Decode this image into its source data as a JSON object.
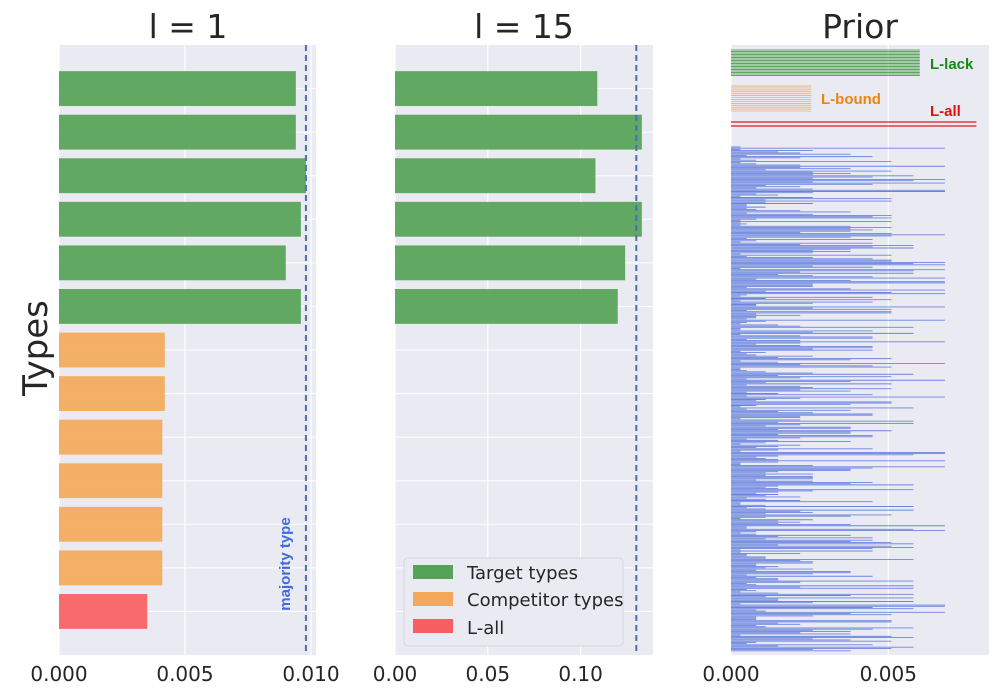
{
  "chart_data": [
    {
      "type": "bar",
      "orientation": "horizontal",
      "title": "l = 1",
      "ylabel": "Types",
      "xlim": [
        0,
        0.0102
      ],
      "xticks": [
        "0.000",
        "0.005",
        "0.010"
      ],
      "xtick_values": [
        0,
        0.005,
        0.01
      ],
      "bars": [
        {
          "group": "target",
          "value": 0.0094
        },
        {
          "group": "target",
          "value": 0.0094
        },
        {
          "group": "target",
          "value": 0.0098
        },
        {
          "group": "target",
          "value": 0.0096
        },
        {
          "group": "target",
          "value": 0.009
        },
        {
          "group": "target",
          "value": 0.0096
        },
        {
          "group": "competitor",
          "value": 0.0042
        },
        {
          "group": "competitor",
          "value": 0.0042
        },
        {
          "group": "competitor",
          "value": 0.0041
        },
        {
          "group": "competitor",
          "value": 0.0041
        },
        {
          "group": "competitor",
          "value": 0.0041
        },
        {
          "group": "competitor",
          "value": 0.0041
        },
        {
          "group": "lall",
          "value": 0.0035
        }
      ],
      "reference_line": {
        "value": 0.0098,
        "label": "majority type"
      }
    },
    {
      "type": "bar",
      "orientation": "horizontal",
      "title": "l = 15",
      "xlim": [
        0,
        0.139
      ],
      "xticks": [
        "0.00",
        "0.05",
        "0.10"
      ],
      "xtick_values": [
        0,
        0.05,
        0.1
      ],
      "bars": [
        {
          "group": "target",
          "value": 0.109
        },
        {
          "group": "target",
          "value": 0.133
        },
        {
          "group": "target",
          "value": 0.108
        },
        {
          "group": "target",
          "value": 0.133
        },
        {
          "group": "target",
          "value": 0.124
        },
        {
          "group": "target",
          "value": 0.12
        }
      ],
      "reference_line": {
        "value": 0.13
      },
      "legend": {
        "placement": "lower-center",
        "entries": [
          {
            "label": "Target types",
            "group": "target"
          },
          {
            "label": "Competitor types",
            "group": "competitor"
          },
          {
            "label": "L-all",
            "group": "lall"
          }
        ]
      }
    },
    {
      "type": "bar",
      "orientation": "horizontal",
      "title": "Prior",
      "xlim": [
        0,
        0.0082
      ],
      "xticks": [
        "0.000",
        "0.005"
      ],
      "xtick_values": [
        0,
        0.005
      ],
      "groups": [
        {
          "label": "L-lack",
          "group": "lack",
          "count": 18,
          "value": 0.006
        },
        {
          "label": "L-bound",
          "group": "bound",
          "count": 14,
          "value": 0.00255
        },
        {
          "label": "L-all",
          "group": "lall",
          "count": 2,
          "value": 0.0078
        }
      ],
      "other_types": {
        "count": 420,
        "value_levels": [
          0.0003,
          0.0005,
          0.0008,
          0.0011,
          0.0015,
          0.0022,
          0.0026,
          0.0038,
          0.0045,
          0.0051,
          0.0058,
          0.0068
        ],
        "max": 0.0068
      }
    }
  ],
  "colors": {
    "target": "#55a357",
    "competitor": "#f4a95a",
    "lall": "#f85f62",
    "lack": "#2f8f2f",
    "bound": "#f2a65a",
    "lall_prior": "#e01b1b",
    "lack_label": "#168a16",
    "bound_label": "#f0820e",
    "lall_label": "#e01010",
    "prior_other": "#6b84e0",
    "refline": "#4a6fb0",
    "majority_label": "#4169e1",
    "plot_bg": "#eaeaf2",
    "grid": "#ffffff"
  }
}
